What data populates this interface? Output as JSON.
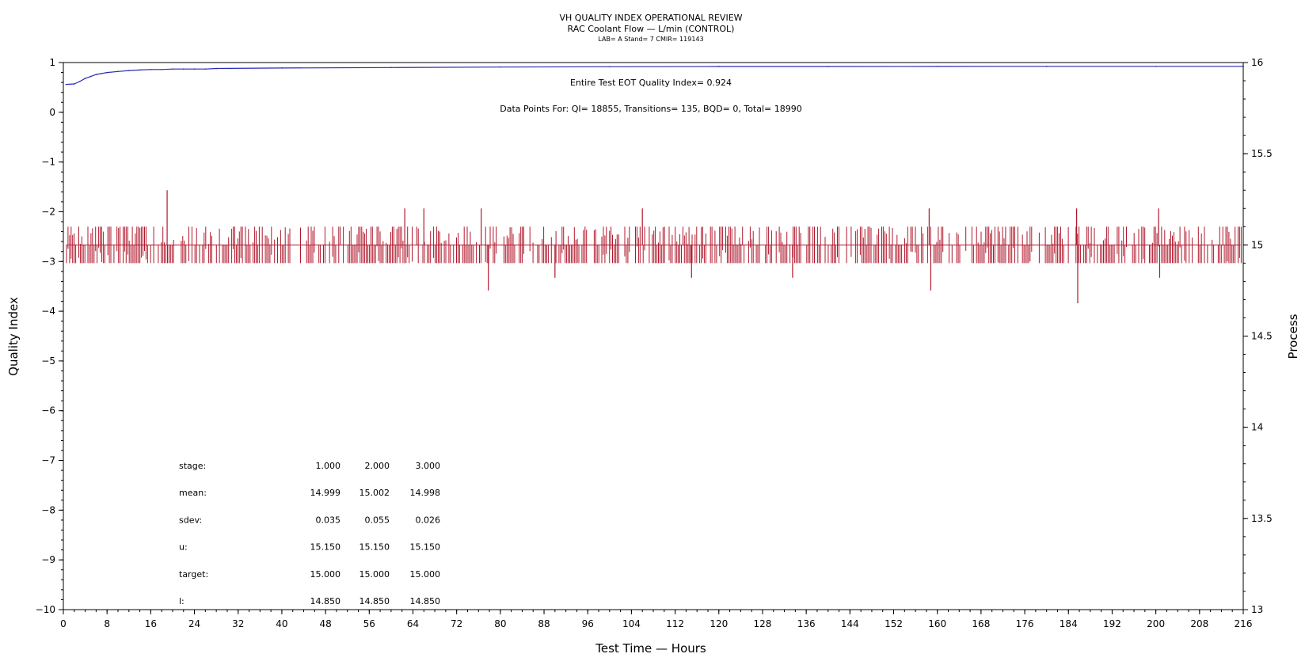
{
  "header": {
    "title": "VH QUALITY INDEX OPERATIONAL REVIEW",
    "subtitle": "RAC Coolant Flow — L/min (CONTROL)",
    "info": "LAB= A Stand= 7 CMIR= 119143"
  },
  "annotations": {
    "eot_qi": "Entire Test EOT Quality Index=   0.924",
    "data_points": "Data Points For: QI= 18855, Transitions=   135, BQD=     0, Total= 18990"
  },
  "chart_data": {
    "type": "line",
    "xlabel": "Test Time — Hours",
    "ylabel_left": "Quality Index",
    "ylabel_right": "Process",
    "xlim": [
      0,
      216
    ],
    "ylim_left": [
      -10,
      1
    ],
    "ylim_right": [
      13,
      16
    ],
    "x_ticks": [
      "0",
      "8",
      "16",
      "24",
      "32",
      "40",
      "48",
      "56",
      "64",
      "72",
      "80",
      "88",
      "96",
      "104",
      "112",
      "120",
      "128",
      "136",
      "144",
      "152",
      "160",
      "168",
      "176",
      "184",
      "192",
      "200",
      "208",
      "216"
    ],
    "y_left_ticks": [
      "1",
      "0",
      "−1",
      "−2",
      "−3",
      "−4",
      "−5",
      "−6",
      "−7",
      "−8",
      "−9",
      "−10"
    ],
    "y_right_ticks": [
      "16",
      "15.5",
      "15",
      "14.5",
      "14",
      "13.5",
      "13"
    ],
    "colors": {
      "quality_index": "#2a2ab4",
      "process": "#b0182c"
    },
    "series": [
      {
        "axis": "left",
        "color": "#2a2ab4",
        "x": [
          0.5,
          2,
          3,
          4,
          5,
          6,
          7,
          8,
          10,
          12,
          14,
          16,
          18,
          20,
          22,
          24,
          26,
          28,
          40,
          60,
          80,
          100,
          120,
          140,
          160,
          180,
          200,
          216
        ],
        "y": [
          0.56,
          0.57,
          0.62,
          0.68,
          0.72,
          0.76,
          0.78,
          0.8,
          0.82,
          0.84,
          0.85,
          0.86,
          0.86,
          0.87,
          0.87,
          0.87,
          0.87,
          0.88,
          0.89,
          0.9,
          0.91,
          0.915,
          0.92,
          0.92,
          0.922,
          0.923,
          0.924,
          0.924
        ]
      },
      {
        "axis": "right",
        "color": "#b0182c",
        "baseline": 15.0,
        "band": [
          14.9,
          15.1
        ],
        "spikes": [
          {
            "x": 19.0,
            "y": 15.3
          },
          {
            "x": 62.5,
            "y": 15.2
          },
          {
            "x": 66.0,
            "y": 15.2
          },
          {
            "x": 76.5,
            "y": 15.2
          },
          {
            "x": 77.8,
            "y": 14.75
          },
          {
            "x": 90.0,
            "y": 14.82
          },
          {
            "x": 106.0,
            "y": 15.2
          },
          {
            "x": 115.0,
            "y": 14.82
          },
          {
            "x": 133.5,
            "y": 14.82
          },
          {
            "x": 158.5,
            "y": 15.2
          },
          {
            "x": 158.8,
            "y": 14.75
          },
          {
            "x": 185.5,
            "y": 15.2
          },
          {
            "x": 185.7,
            "y": 14.68
          },
          {
            "x": 200.5,
            "y": 15.2
          },
          {
            "x": 200.7,
            "y": 14.82
          }
        ]
      }
    ]
  },
  "stats_table": {
    "rows": [
      {
        "label": "stage:",
        "values": [
          "1.000",
          "2.000",
          "3.000"
        ]
      },
      {
        "label": "mean:",
        "values": [
          "14.999",
          "15.002",
          "14.998"
        ]
      },
      {
        "label": "sdev:",
        "values": [
          "0.035",
          "0.055",
          "0.026"
        ]
      },
      {
        "label": "u:",
        "values": [
          "15.150",
          "15.150",
          "15.150"
        ]
      },
      {
        "label": "target:",
        "values": [
          "15.000",
          "15.000",
          "15.000"
        ]
      },
      {
        "label": "l:",
        "values": [
          "14.850",
          "14.850",
          "14.850"
        ]
      }
    ]
  }
}
